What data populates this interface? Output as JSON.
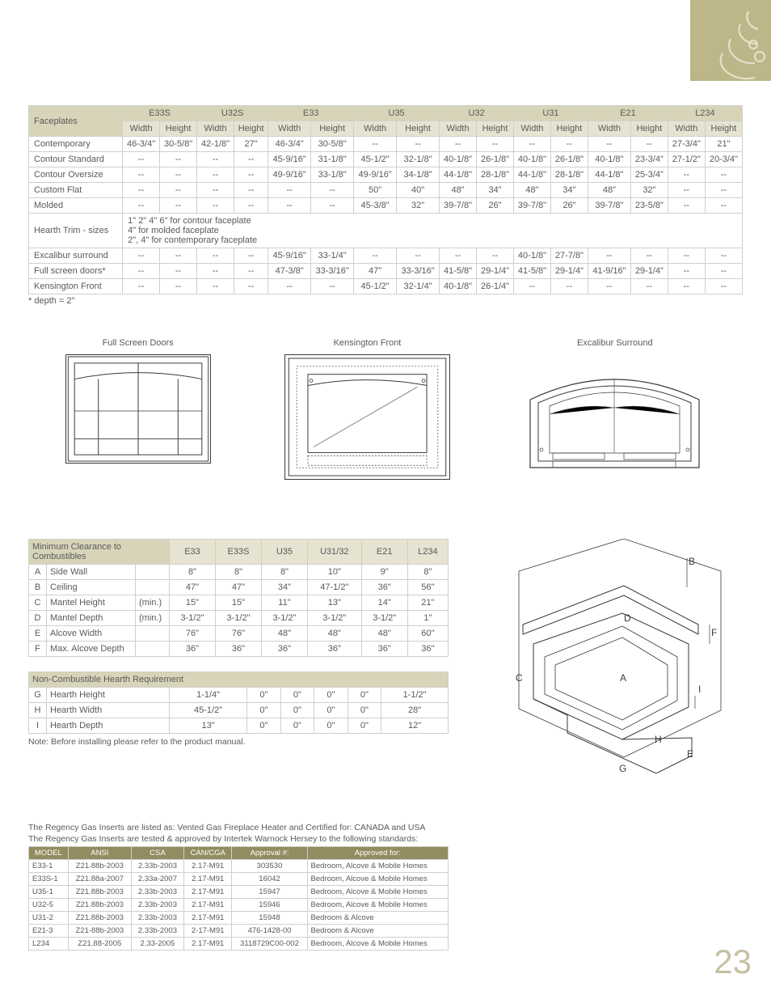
{
  "page_number": "23",
  "colors": {
    "accent_bg": "#bcb688",
    "header_bg": "#d8d4b9",
    "subheader_bg": "#e6e3d1",
    "border": "#d0d0c8",
    "text": "#5a5a5a",
    "approval_header_bg": "#928c60",
    "pagenum": "#c6c0a2"
  },
  "faceplates": {
    "title": "Faceplates",
    "models": [
      "E33S",
      "U32S",
      "E33",
      "U35",
      "U32",
      "U31",
      "E21",
      "L234"
    ],
    "subcols": [
      "Width",
      "Height"
    ],
    "rows": [
      {
        "label": "Contemporary",
        "cells": [
          "46-3/4\"",
          "30-5/8\"",
          "42-1/8\"",
          "27\"",
          "46-3/4\"",
          "30-5/8\"",
          "--",
          "--",
          "--",
          "--",
          "--",
          "--",
          "--",
          "--",
          "27-3/4\"",
          "21\""
        ]
      },
      {
        "label": "Contour Standard",
        "cells": [
          "--",
          "--",
          "--",
          "--",
          "45-9/16\"",
          "31-1/8\"",
          "45-1/2\"",
          "32-1/8\"",
          "40-1/8\"",
          "26-1/8\"",
          "40-1/8\"",
          "26-1/8\"",
          "40-1/8\"",
          "23-3/4\"",
          "27-1/2\"",
          "20-3/4\""
        ]
      },
      {
        "label": "Contour Oversize",
        "cells": [
          "--",
          "--",
          "--",
          "--",
          "49-9/16\"",
          "33-1/8\"",
          "49-9/16\"",
          "34-1/8\"",
          "44-1/8\"",
          "28-1/8\"",
          "44-1/8\"",
          "28-1/8\"",
          "44-1/8\"",
          "25-3/4\"",
          "--",
          "--"
        ]
      },
      {
        "label": "Custom Flat",
        "cells": [
          "--",
          "--",
          "--",
          "--",
          "--",
          "--",
          "50\"",
          "40\"",
          "48\"",
          "34\"",
          "48\"",
          "34\"",
          "48\"",
          "32\"",
          "--",
          "--"
        ]
      },
      {
        "label": "Molded",
        "cells": [
          "--",
          "--",
          "--",
          "--",
          "--",
          "--",
          "45-3/8\"",
          "32\"",
          "39-7/8\"",
          "26\"",
          "39-7/8\"",
          "26\"",
          "39-7/8\"",
          "23-5/8\"",
          "--",
          "--"
        ]
      }
    ],
    "hearth_label": "Hearth Trim - sizes",
    "hearth_lines": [
      "1\" 2\" 4\" 6\" for contour faceplate",
      "4\" for molded faceplate",
      "2\", 4\" for contemporary faceplate"
    ],
    "tail_rows": [
      {
        "label": "Excalibur surround",
        "cells": [
          "--",
          "--",
          "--",
          "--",
          "45-9/16\"",
          "33-1/4\"",
          "--",
          "--",
          "--",
          "--",
          "40-1/8\"",
          "27-7/8\"",
          "--",
          "--",
          "--",
          "--"
        ]
      },
      {
        "label": "Full screen doors*",
        "cells": [
          "--",
          "--",
          "--",
          "--",
          "47-3/8\"",
          "33-3/16\"",
          "47\"",
          "33-3/16\"",
          "41-5/8\"",
          "29-1/4\"",
          "41-5/8\"",
          "29-1/4\"",
          "41-9/16\"",
          "29-1/4\"",
          "--",
          "--"
        ]
      },
      {
        "label": "Kensington Front",
        "cells": [
          "--",
          "--",
          "--",
          "--",
          "--",
          "--",
          "45-1/2\"",
          "32-1/4\"",
          "40-1/8\"",
          "26-1/4\"",
          "--",
          "--",
          "--",
          "--",
          "--",
          "--"
        ]
      }
    ],
    "depth_note": "* depth = 2\""
  },
  "figures": {
    "fs": {
      "caption": "Full Screen Doors"
    },
    "ken": {
      "caption": "Kensington Front"
    },
    "exc": {
      "caption": "Excalibur Surround"
    }
  },
  "clearance": {
    "title": "Minimum Clearance to Combustibles",
    "cols": [
      "E33",
      "E33S",
      "U35",
      "U31/32",
      "E21",
      "L234"
    ],
    "rows": [
      {
        "k": "A",
        "label": "Side Wall",
        "sub": "",
        "vals": [
          "8\"",
          "8\"",
          "8\"",
          "10\"",
          "9\"",
          "8\""
        ]
      },
      {
        "k": "B",
        "label": "Ceiling",
        "sub": "",
        "vals": [
          "47\"",
          "47\"",
          "34\"",
          "47-1/2\"",
          "36\"",
          "56\""
        ]
      },
      {
        "k": "C",
        "label": "Mantel Height",
        "sub": "(min.)",
        "vals": [
          "15\"",
          "15\"",
          "11\"",
          "13\"",
          "14\"",
          "21\""
        ]
      },
      {
        "k": "D",
        "label": "Mantel Depth",
        "sub": "(min.)",
        "vals": [
          "3-1/2\"",
          "3-1/2\"",
          "3-1/2\"",
          "3-1/2\"",
          "3-1/2\"",
          "1\""
        ]
      },
      {
        "k": "E",
        "label": "Alcove Width",
        "sub": "",
        "vals": [
          "76\"",
          "76\"",
          "48\"",
          "48\"",
          "48\"",
          "60\""
        ]
      },
      {
        "k": "F",
        "label": "Max. Alcove Depth",
        "sub": "",
        "vals": [
          "36\"",
          "36\"",
          "36\"",
          "36\"",
          "36\"",
          "36\""
        ]
      }
    ]
  },
  "hearth_req": {
    "title": "Non-Combustible Hearth Requirement",
    "rows": [
      {
        "k": "G",
        "label": "Hearth Height",
        "vals": [
          "1-1/4\"",
          "0\"",
          "0\"",
          "0\"",
          "0\"",
          "1-1/2\""
        ]
      },
      {
        "k": "H",
        "label": "Hearth Width",
        "vals": [
          "45-1/2\"",
          "0\"",
          "0\"",
          "0\"",
          "0\"",
          "28\""
        ]
      },
      {
        "k": "I",
        "label": "Hearth Depth",
        "vals": [
          "13\"",
          "0\"",
          "0\"",
          "0\"",
          "0\"",
          "12\""
        ]
      }
    ],
    "note": "Note: Before installing please refer to the product manual."
  },
  "diagram_labels": [
    "A",
    "B",
    "C",
    "D",
    "E",
    "F",
    "G",
    "H",
    "I"
  ],
  "approvals": {
    "intro1": "The Regency Gas Inserts are listed as: Vented Gas Fireplace Heater and Certified for: CANADA and USA",
    "intro2": "The Regency Gas Inserts are tested & approved by Intertek Warnock Hersey to the following standards:",
    "cols": [
      "MODEL",
      "ANSI",
      "CSA",
      "CAN/CGA",
      "Approval #:",
      "Approved for:"
    ],
    "rows": [
      [
        "E33-1",
        "Z21.88b-2003",
        "2.33b-2003",
        "2.17-M91",
        "303530",
        "Bedroom, Alcove & Mobile Homes"
      ],
      [
        "E33S-1",
        "Z21.88a-2007",
        "2.33a-2007",
        "2.17-M91",
        "16042",
        "Bedroom, Alcove & Mobile Homes"
      ],
      [
        "U35-1",
        "Z21.88b-2003",
        "2.33b-2003",
        "2.17-M91",
        "15947",
        "Bedroom, Alcove & Mobile Homes"
      ],
      [
        "U32-5",
        "Z21.88b-2003",
        "2.33b-2003",
        "2.17-M91",
        "15946",
        "Bedroom, Alcove & Mobile Homes"
      ],
      [
        "U31-2",
        "Z21.88b-2003",
        "2.33b-2003",
        "2.17-M91",
        "15948",
        "Bedroom & Alcove"
      ],
      [
        "E21-3",
        "Z21-88b-2003",
        "2.33b-2003",
        "2-17-M91",
        "476-1428-00",
        "Bedroom & Alcove"
      ],
      [
        "L234",
        "Z21.88-2005",
        "2.33-2005",
        "2.17-M91",
        "3118729C00-002",
        "Bedroom, Alcove & Mobile Homes"
      ]
    ]
  }
}
